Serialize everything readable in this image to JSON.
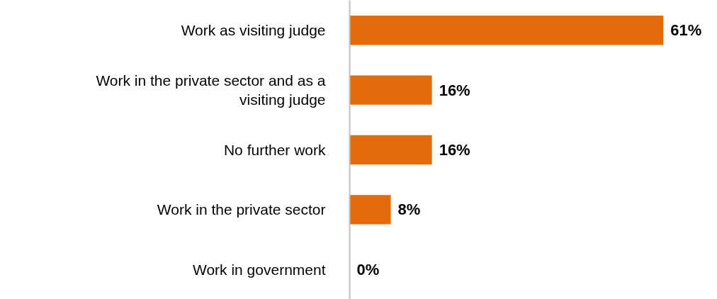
{
  "chart_data": {
    "type": "bar",
    "orientation": "horizontal",
    "categories": [
      "Work as visiting judge",
      "Work in the private sector and as a visiting judge",
      "No further work",
      "Work in the private sector",
      "Work in government"
    ],
    "values": [
      61,
      16,
      16,
      8,
      0
    ],
    "color": "#e36c0a",
    "value_labels": [
      "61%",
      "16%",
      "16%",
      "8%",
      "0%"
    ],
    "grid": false
  }
}
